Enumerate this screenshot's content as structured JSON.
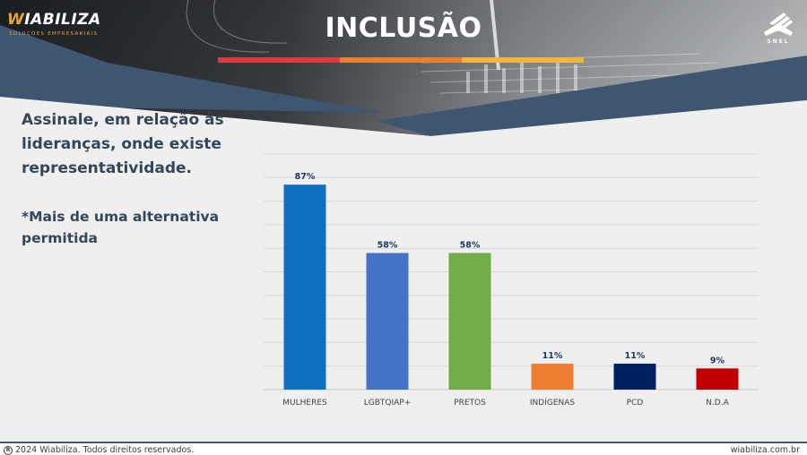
{
  "header": {
    "brand": {
      "name_initial": "W",
      "name_rest": "IABILIZA",
      "tagline": "SOLUÇÕES EMPRESARIAIS"
    },
    "title": "INCLUSÃO",
    "partner_logo": "SNEL",
    "accent_colors": [
      "#e03a3e",
      "#ed7d31",
      "#f2b63c"
    ]
  },
  "question": {
    "text": "Assinale, em relação às lideranças, onde existe representatividade.",
    "note": "*Mais de uma alternativa permitida"
  },
  "chart_data": {
    "type": "bar",
    "categories": [
      "MULHERES",
      "LGBTQIAP+",
      "PRETOS",
      "INDÍGENAS",
      "PCD",
      "N.D.A"
    ],
    "values": [
      87,
      58,
      58,
      11,
      11,
      9
    ],
    "labels": [
      "87%",
      "58%",
      "58%",
      "11%",
      "11%",
      "9%"
    ],
    "colors": [
      "#1070c0",
      "#4472c4",
      "#70ad47",
      "#ed7d31",
      "#002060",
      "#c00000"
    ],
    "ylim": [
      0,
      100
    ],
    "grid": true
  },
  "footer": {
    "copyright_icon": "registered-icon",
    "copyright": "2024 Wiabiliza. Todos direitos reservados.",
    "website": "wiabiliza.com.br"
  }
}
